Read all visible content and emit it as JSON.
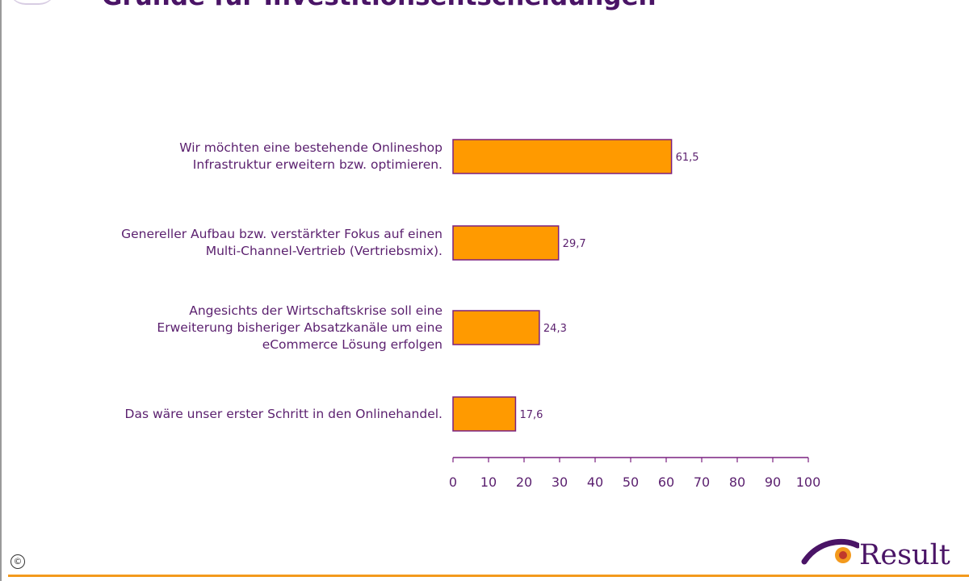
{
  "header": {
    "title": "Gründe für Investitionsentscheidungen"
  },
  "footer": {
    "copyright_symbol": "©",
    "logo_text": "Result"
  },
  "colors": {
    "bar_fill": "#ff9a00",
    "bar_stroke": "#7a2080",
    "text": "#5a1f6e",
    "footer_line": "#f39a1d"
  },
  "chart_data": {
    "type": "bar",
    "orientation": "horizontal",
    "title": "Gründe für Investitionsentscheidungen",
    "categories": [
      [
        "Wir möchten eine bestehende Onlineshop",
        "Infrastruktur erweitern bzw. optimieren."
      ],
      [
        "Genereller Aufbau bzw. verstärkter Fokus auf einen",
        "Multi-Channel-Vertrieb (Vertriebsmix)."
      ],
      [
        "Angesichts der Wirtschaftskrise soll eine",
        "Erweiterung bisheriger Absatzkanäle um eine",
        "eCommerce Lösung erfolgen"
      ],
      [
        "Das wäre unser erster Schritt in den Onlinehandel."
      ]
    ],
    "values": [
      61.5,
      29.7,
      24.3,
      17.6
    ],
    "value_labels": [
      "61,5",
      "29,7",
      "24,3",
      "17,6"
    ],
    "xlim": [
      0,
      100
    ],
    "xticks": [
      0,
      10,
      20,
      30,
      40,
      50,
      60,
      70,
      80,
      90,
      100
    ],
    "grid": false
  }
}
